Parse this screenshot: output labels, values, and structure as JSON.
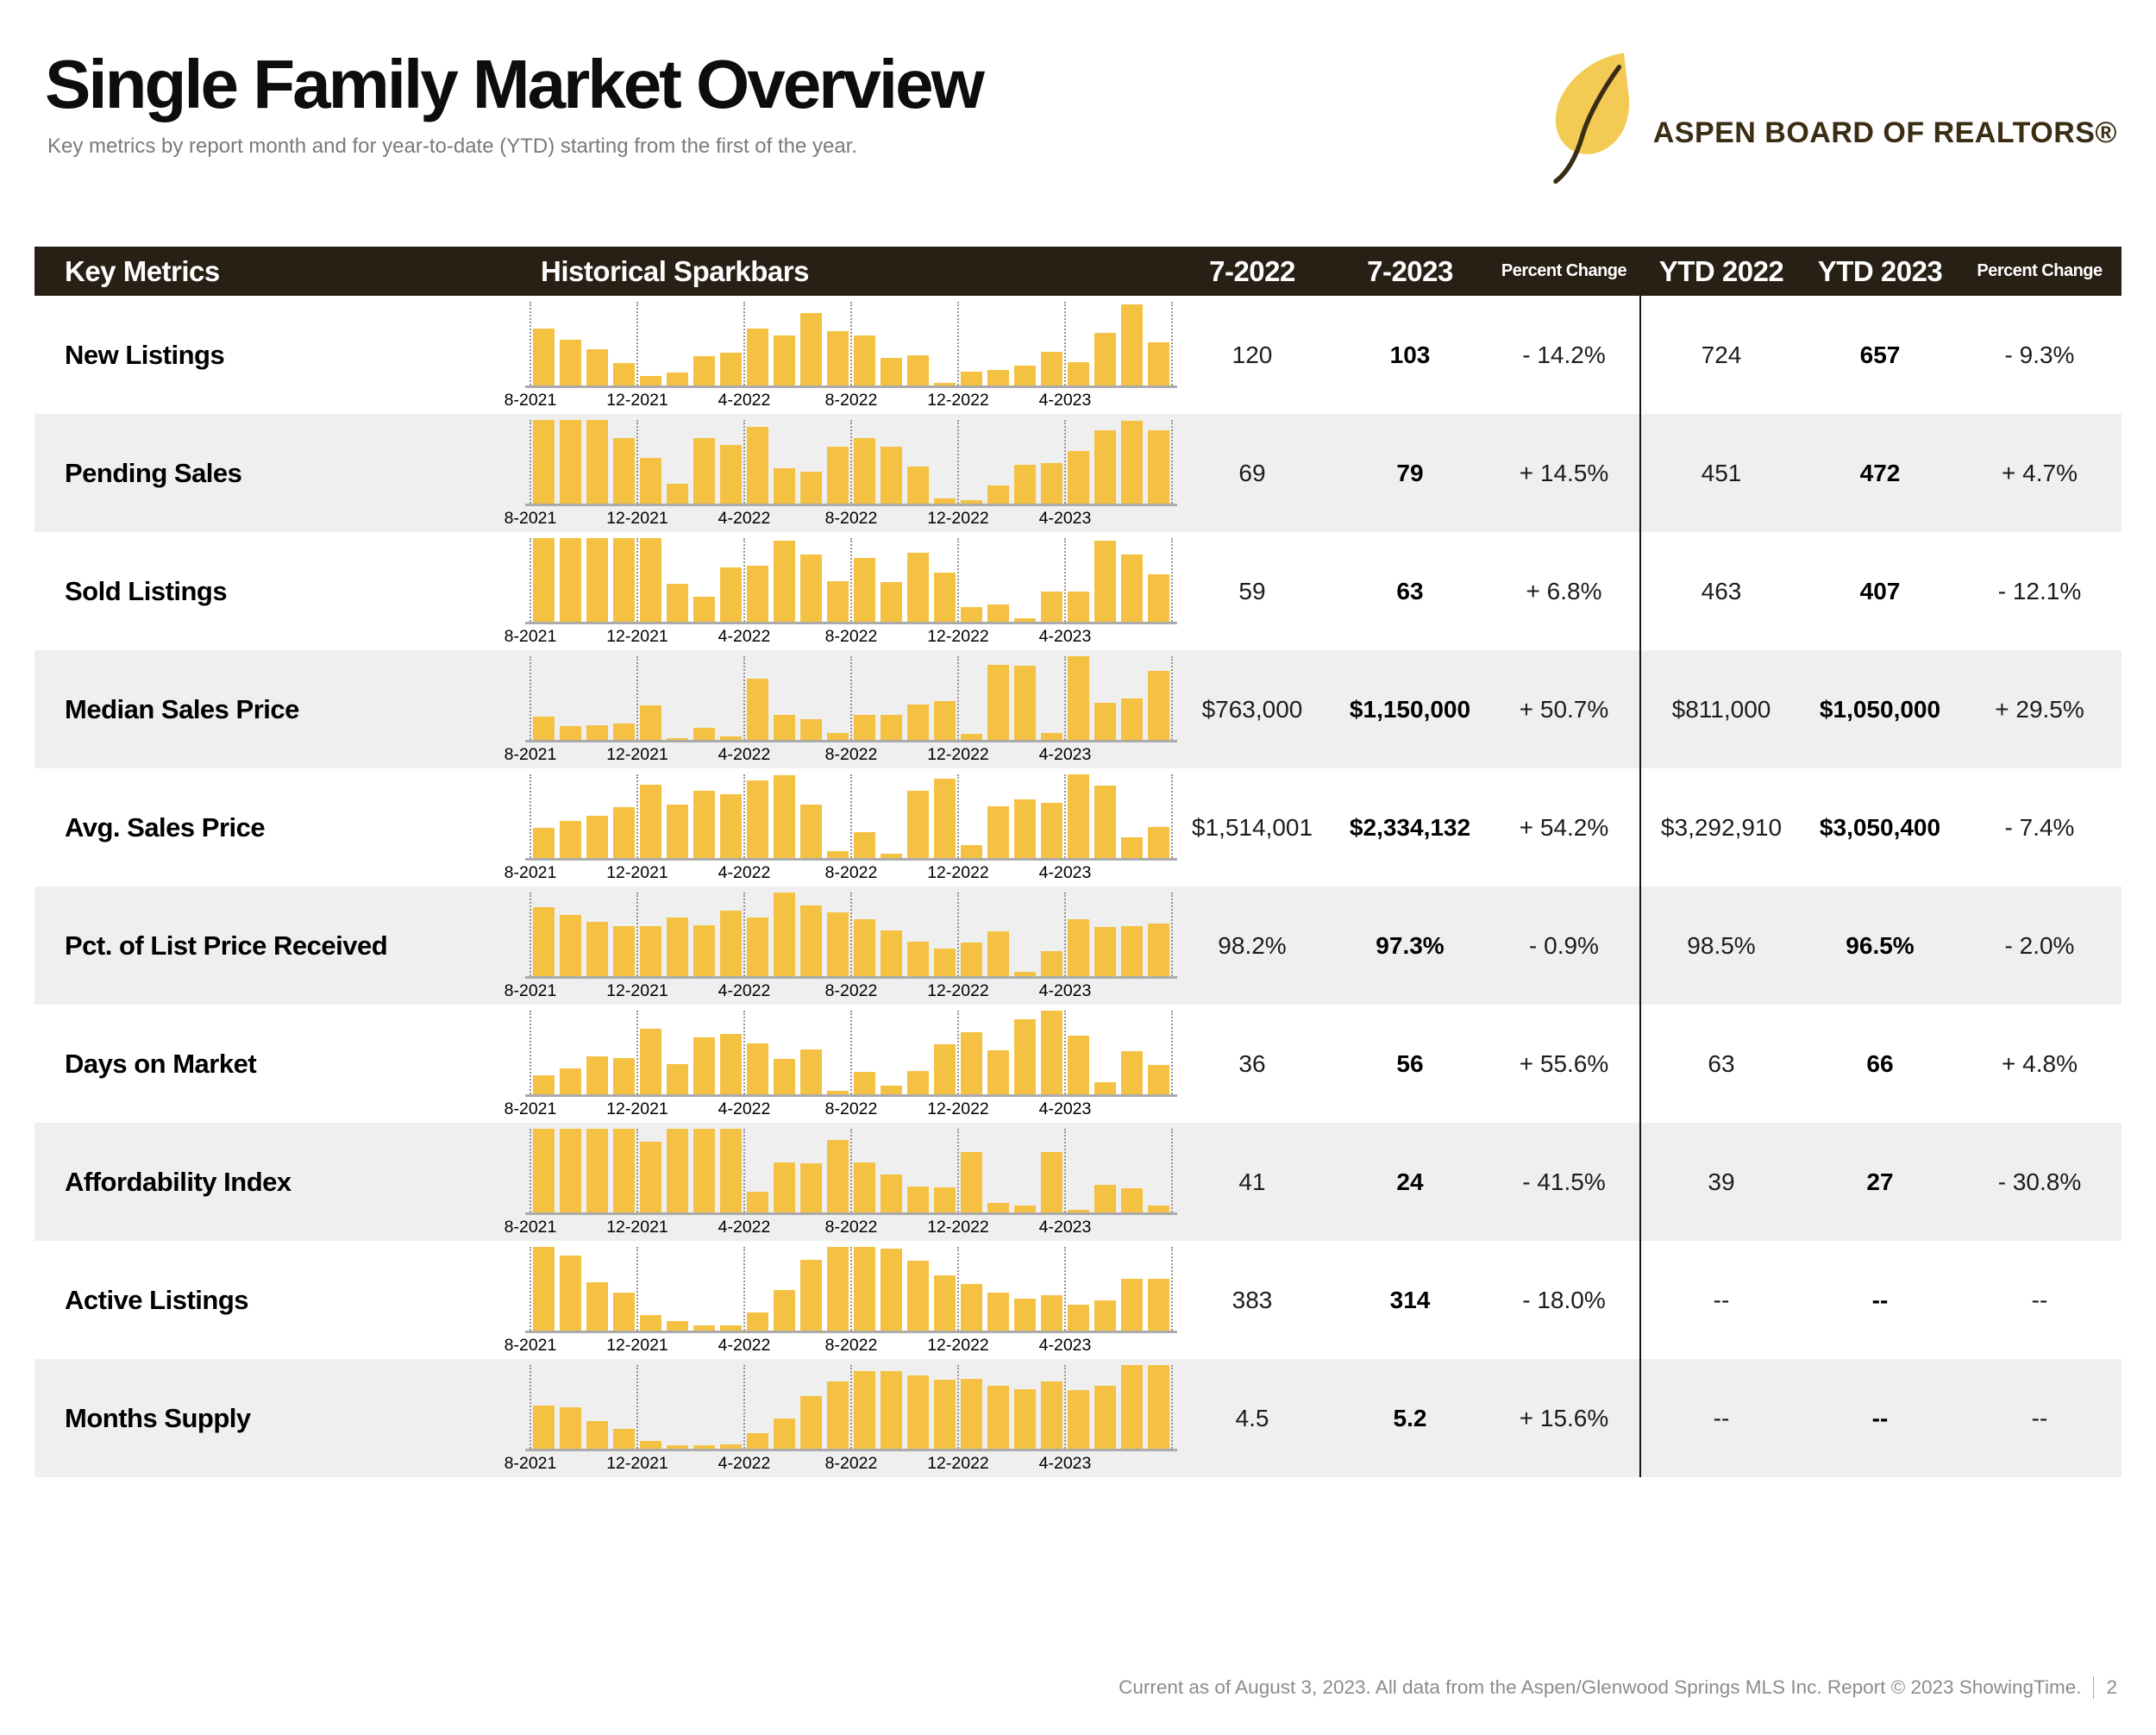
{
  "page": {
    "title": "Single Family Market Overview",
    "subtitle": "Key metrics by report month and for year-to-date (YTD) starting from the first of the year.",
    "footer": "Current as of August 3, 2023. All data from the Aspen/Glenwood Springs MLS Inc. Report © 2023 ShowingTime.",
    "page_number": "2"
  },
  "logo": {
    "text": "ASPEN BOARD OF REALTORS®",
    "leaf_icon": "aspen-leaf",
    "leaf_color": "#f3cb54",
    "stem_color": "#3b2d14",
    "text_color": "#3b2d14"
  },
  "colors": {
    "bar": "#f5c142",
    "header_bg": "#281f15",
    "row_alt": "#efefef",
    "divider": "#151515"
  },
  "table": {
    "headers": {
      "key_metrics": "Key Metrics",
      "sparkbars": "Historical Sparkbars",
      "month_prev": "7-2022",
      "month_curr": "7-2023",
      "pct_change": "Percent Change",
      "ytd_prev": "YTD 2022",
      "ytd_curr": "YTD 2023",
      "ytd_pct_change": "Percent Change"
    },
    "axis_labels": [
      "8-2021",
      "12-2021",
      "4-2022",
      "8-2022",
      "12-2022",
      "4-2023"
    ],
    "rows": [
      {
        "label": "New Listings",
        "month_prev": "120",
        "month_curr": "103",
        "pct_change": "- 14.2%",
        "ytd_prev": "724",
        "ytd_curr": "657",
        "ytd_pct_change": "- 9.3%"
      },
      {
        "label": "Pending Sales",
        "month_prev": "69",
        "month_curr": "79",
        "pct_change": "+ 14.5%",
        "ytd_prev": "451",
        "ytd_curr": "472",
        "ytd_pct_change": "+ 4.7%"
      },
      {
        "label": "Sold Listings",
        "month_prev": "59",
        "month_curr": "63",
        "pct_change": "+ 6.8%",
        "ytd_prev": "463",
        "ytd_curr": "407",
        "ytd_pct_change": "- 12.1%"
      },
      {
        "label": "Median Sales Price",
        "month_prev": "$763,000",
        "month_curr": "$1,150,000",
        "pct_change": "+ 50.7%",
        "ytd_prev": "$811,000",
        "ytd_curr": "$1,050,000",
        "ytd_pct_change": "+ 29.5%"
      },
      {
        "label": "Avg. Sales Price",
        "month_prev": "$1,514,001",
        "month_curr": "$2,334,132",
        "pct_change": "+ 54.2%",
        "ytd_prev": "$3,292,910",
        "ytd_curr": "$3,050,400",
        "ytd_pct_change": "- 7.4%"
      },
      {
        "label": "Pct. of List Price Received",
        "month_prev": "98.2%",
        "month_curr": "97.3%",
        "pct_change": "- 0.9%",
        "ytd_prev": "98.5%",
        "ytd_curr": "96.5%",
        "ytd_pct_change": "- 2.0%"
      },
      {
        "label": "Days on Market",
        "month_prev": "36",
        "month_curr": "56",
        "pct_change": "+ 55.6%",
        "ytd_prev": "63",
        "ytd_curr": "66",
        "ytd_pct_change": "+ 4.8%"
      },
      {
        "label": "Affordability Index",
        "month_prev": "41",
        "month_curr": "24",
        "pct_change": "- 41.5%",
        "ytd_prev": "39",
        "ytd_curr": "27",
        "ytd_pct_change": "- 30.8%"
      },
      {
        "label": "Active Listings",
        "month_prev": "383",
        "month_curr": "314",
        "pct_change": "- 18.0%",
        "ytd_prev": "--",
        "ytd_curr": "--",
        "ytd_pct_change": "--"
      },
      {
        "label": "Months Supply",
        "month_prev": "4.5",
        "month_curr": "5.2",
        "pct_change": "+ 15.6%",
        "ytd_prev": "--",
        "ytd_curr": "--",
        "ytd_pct_change": "--"
      }
    ]
  },
  "chart_data": {
    "type": "bar",
    "note": "Historical sparkbars, monthly values Aug 2021 - Jul 2023; bar heights normalized 0-100 per metric (no y-axis shown in source).",
    "x": [
      "8-2021",
      "9-2021",
      "10-2021",
      "11-2021",
      "12-2021",
      "1-2022",
      "2-2022",
      "3-2022",
      "4-2022",
      "5-2022",
      "6-2022",
      "7-2022",
      "8-2022",
      "9-2022",
      "10-2022",
      "11-2022",
      "12-2022",
      "1-2023",
      "2-2023",
      "3-2023",
      "4-2023",
      "5-2023",
      "6-2023",
      "7-2023"
    ],
    "x_tick_labels": [
      "8-2021",
      "12-2021",
      "4-2022",
      "8-2022",
      "12-2022",
      "4-2023"
    ],
    "series": [
      {
        "name": "New Listings",
        "values": [
          68,
          55,
          43,
          27,
          11,
          15,
          35,
          39,
          68,
          60,
          87,
          65,
          60,
          33,
          36,
          3,
          16,
          19,
          24,
          40,
          28,
          63,
          97,
          52
        ]
      },
      {
        "name": "Pending Sales",
        "values": [
          100,
          100,
          100,
          78,
          55,
          24,
          78,
          70,
          92,
          42,
          38,
          68,
          78,
          68,
          44,
          6,
          4,
          22,
          46,
          48,
          63,
          88,
          99,
          88
        ]
      },
      {
        "name": "Sold Listings",
        "values": [
          100,
          100,
          100,
          100,
          100,
          45,
          30,
          65,
          67,
          97,
          80,
          48,
          76,
          47,
          82,
          59,
          18,
          21,
          4,
          36,
          36,
          97,
          80,
          57
        ]
      },
      {
        "name": "Median Sales Price",
        "values": [
          28,
          17,
          18,
          20,
          41,
          2,
          14,
          4,
          73,
          30,
          25,
          8,
          30,
          30,
          42,
          46,
          7,
          90,
          89,
          8,
          100,
          44,
          49,
          82
        ]
      },
      {
        "name": "Avg. Sales Price",
        "values": [
          36,
          44,
          51,
          61,
          88,
          64,
          80,
          76,
          93,
          99,
          64,
          8,
          31,
          5,
          80,
          95,
          15,
          62,
          70,
          66,
          100,
          87,
          25,
          37
        ]
      },
      {
        "name": "Pct. of List Price Received",
        "values": [
          82,
          73,
          65,
          60,
          60,
          70,
          61,
          78,
          70,
          100,
          85,
          76,
          68,
          55,
          41,
          33,
          40,
          54,
          5,
          30,
          68,
          59,
          60,
          63
        ]
      },
      {
        "name": "Days on Market",
        "values": [
          23,
          31,
          45,
          43,
          78,
          36,
          68,
          72,
          61,
          42,
          54,
          4,
          27,
          10,
          28,
          60,
          74,
          53,
          90,
          100,
          70,
          14,
          52,
          35
        ]
      },
      {
        "name": "Affordability Index",
        "values": [
          100,
          100,
          100,
          100,
          85,
          100,
          100,
          100,
          25,
          60,
          59,
          87,
          60,
          45,
          31,
          30,
          72,
          11,
          8,
          72,
          3,
          33,
          29,
          8
        ]
      },
      {
        "name": "Active Listings",
        "values": [
          100,
          90,
          58,
          45,
          19,
          11,
          6,
          6,
          22,
          48,
          85,
          100,
          100,
          98,
          83,
          66,
          56,
          45,
          38,
          42,
          31,
          36,
          62,
          62
        ]
      },
      {
        "name": "Months Supply",
        "values": [
          52,
          49,
          33,
          24,
          9,
          4,
          4,
          5,
          19,
          36,
          63,
          80,
          93,
          93,
          88,
          82,
          83,
          75,
          71,
          80,
          70,
          75,
          100,
          100
        ]
      }
    ]
  }
}
